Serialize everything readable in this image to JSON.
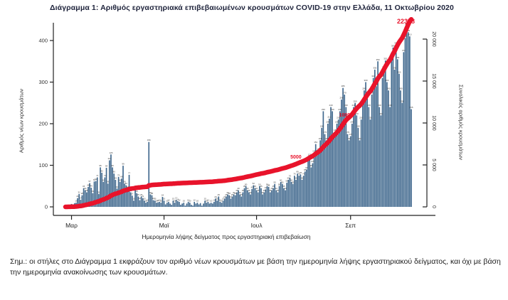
{
  "title": "Διάγραμμα 1: Αριθμός εργαστηριακά επιβεβαιωμένων κρουσμάτων COVID-19 στην Ελλάδα, 11 Οκτωβρίου 2020",
  "footnote": "Σημ.: οι στήλες στο Διάγραμμα 1 εκφράζουν τον αριθμό νέων κρουσμάτων με βάση την ημερομηνία λήψης εργαστηριακού δείγματος, και όχι με βάση την ημερομηνία ανακοίνωσης των κρουσμάτων.",
  "colors": {
    "bar": "#41698E",
    "line": "#E8132B",
    "axis": "#222222",
    "tick_text": "#333333",
    "bar_label": "#3a3a3a",
    "title": "#20253d"
  },
  "chart_data": {
    "type": "bar",
    "title": "Διάγραμμα 1: Αριθμός εργαστηριακά επιβεβαιωμένων κρουσμάτων COVID-19 στην Ελλάδα, 11 Οκτωβρίου 2020",
    "xlabel": "Ημερομηνία λήψης δείγματος προς εργαστηριακή επιβεβαίωση",
    "left_axis": {
      "label": "Αριθμός νέων κρουσμάτων",
      "ticks": [
        0,
        100,
        200,
        300,
        400
      ],
      "lim": [
        0,
        435
      ]
    },
    "right_axis": {
      "label": "Συνολικός αριθμός κρουσμάτων",
      "ticks": [
        0,
        5000,
        10000,
        15000,
        20000
      ],
      "lim": [
        0,
        22358
      ]
    },
    "x_ticks": [
      {
        "label": "Μαρ",
        "day_index": 4
      },
      {
        "label": "Μαϊ",
        "day_index": 65
      },
      {
        "label": "Ιουλ",
        "day_index": 126
      },
      {
        "label": "Σεπ",
        "day_index": 188
      }
    ],
    "grid": false,
    "legend": "none",
    "series": [
      {
        "name": "daily_new_cases",
        "type": "bar",
        "values": [
          1,
          2,
          3,
          4,
          7,
          3,
          9,
          10,
          21,
          31,
          17,
          28,
          45,
          40,
          35,
          48,
          57,
          46,
          33,
          61,
          62,
          71,
          31,
          95,
          82,
          60,
          71,
          94,
          56,
          112,
          126,
          95,
          80,
          65,
          44,
          72,
          60,
          68,
          99,
          56,
          52,
          44,
          77,
          35,
          27,
          15,
          45,
          33,
          25,
          16,
          25,
          21,
          15,
          10,
          12,
          156,
          30,
          28,
          16,
          15,
          10,
          11,
          12,
          10,
          24,
          15,
          6,
          10,
          12,
          8,
          5,
          15,
          10,
          17,
          14,
          12,
          5,
          8,
          10,
          3,
          8,
          12,
          10,
          5,
          3,
          12,
          8,
          10,
          6,
          9,
          3,
          8,
          15,
          10,
          12,
          8,
          10,
          8,
          12,
          20,
          15,
          25,
          12,
          10,
          15,
          20,
          25,
          30,
          28,
          20,
          25,
          30,
          28,
          35,
          40,
          30,
          25,
          35,
          45,
          50,
          40,
          35,
          30,
          43,
          52,
          45,
          40,
          35,
          50,
          45,
          30,
          35,
          42,
          50,
          48,
          35,
          40,
          45,
          55,
          40,
          35,
          50,
          60,
          55,
          45,
          40,
          58,
          65,
          70,
          60,
          55,
          75,
          65,
          80,
          75,
          78,
          65,
          75,
          85,
          90,
          110,
          121,
          95,
          105,
          130,
          151,
          125,
          135,
          160,
          190,
          230,
          175,
          160,
          200,
          212,
          240,
          230,
          170,
          180,
          200,
          210,
          230,
          258,
          286,
          270,
          240,
          175,
          160,
          170,
          200,
          240,
          250,
          220,
          190,
          160,
          210,
          250,
          280,
          300,
          270,
          240,
          210,
          270,
          310,
          330,
          290,
          350,
          240,
          220,
          310,
          332,
          352,
          300,
          280,
          240,
          350,
          383,
          330,
          390,
          355,
          320,
          280,
          250,
          372,
          406,
          435,
          420,
          410,
          235
        ]
      },
      {
        "name": "cumulative_cases",
        "type": "line",
        "derived": "cumulative_sum_of_daily_new_cases",
        "final_value": 22358
      }
    ],
    "annotations": {
      "milestones": [
        "5000",
        "10000"
      ],
      "final_total": "22358"
    }
  }
}
